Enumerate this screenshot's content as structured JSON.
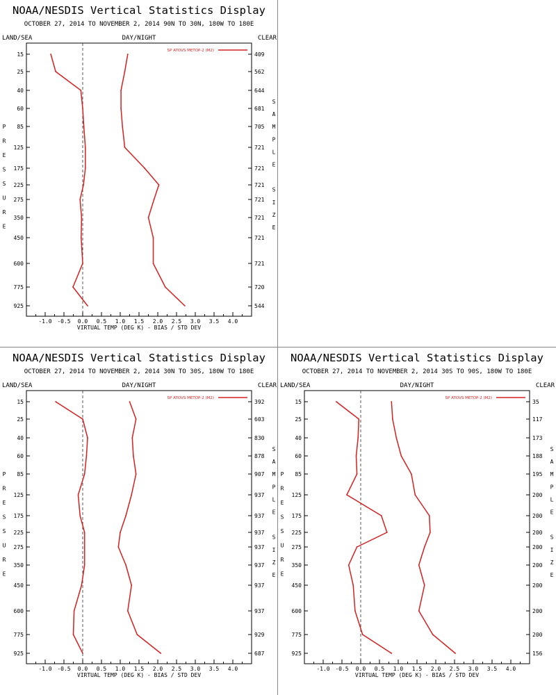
{
  "panels": [
    {
      "title": "NOAA/NESDIS Vertical Statistics Display",
      "subtitle": "OCTOBER 27, 2014 TO NOVEMBER 2, 2014  90N TO 30N, 180W TO 180E",
      "header_left": "LAND/SEA",
      "header_center": "DAY/NIGHT",
      "header_right": "CLEAR",
      "left_axis_label": "PRESSURE",
      "right_axis_label": "SAMPLE SIZE",
      "legend": "SP ATOVS METOP-2 (M2)",
      "xlabel": "VIRTUAL TEMP (DEG K) - BIAS / STD DEV",
      "chart_data": {
        "type": "line",
        "levels": [
          "15",
          "25",
          "40",
          "60",
          "85",
          "125",
          "175",
          "225",
          "275",
          "350",
          "450",
          "600",
          "775",
          "925"
        ],
        "x_ticks": [
          "-1.0",
          "-0.5",
          "0.0",
          "0.5",
          "1.0",
          "1.5",
          "2.0",
          "2.5",
          "3.0",
          "3.5",
          "4.0"
        ],
        "xlim": [
          -1.5,
          4.5
        ],
        "color": "#d42020",
        "sample_size": [
          "409",
          "562",
          "644",
          "681",
          "705",
          "721",
          "721",
          "721",
          "721",
          "721",
          "721",
          "721",
          "720",
          "544"
        ],
        "series": [
          {
            "values": [
              -0.85,
              -0.72,
              -0.05,
              0.0,
              0.03,
              0.07,
              0.07,
              0.02,
              -0.07,
              -0.03,
              -0.04,
              0.0,
              -0.26,
              0.13
            ]
          },
          {
            "values": [
              1.2,
              1.12,
              1.02,
              1.02,
              1.06,
              1.12,
              1.65,
              2.03,
              1.9,
              1.75,
              1.88,
              1.88,
              2.2,
              2.72
            ]
          }
        ]
      }
    },
    {
      "title": "NOAA/NESDIS Vertical Statistics Display",
      "subtitle": "OCTOBER 27, 2014 TO NOVEMBER 2, 2014  30N TO 30S, 180W TO 180E",
      "header_left": "LAND/SEA",
      "header_center": "DAY/NIGHT",
      "header_right": "CLEAR",
      "left_axis_label": "PRESSURE",
      "right_axis_label": "SAMPLE SIZE",
      "legend": "SP ATOVS METOP-2 (M2)",
      "xlabel": "VIRTUAL TEMP (DEG K) - BIAS / STD DEV",
      "chart_data": {
        "type": "line",
        "levels": [
          "15",
          "25",
          "40",
          "60",
          "85",
          "125",
          "175",
          "225",
          "275",
          "350",
          "450",
          "600",
          "775",
          "925"
        ],
        "x_ticks": [
          "-1.0",
          "-0.5",
          "0.0",
          "0.5",
          "1.0",
          "1.5",
          "2.0",
          "2.5",
          "3.0",
          "3.5",
          "4.0"
        ],
        "xlim": [
          -1.5,
          4.5
        ],
        "color": "#d42020",
        "sample_size": [
          "392",
          "603",
          "830",
          "878",
          "907",
          "937",
          "937",
          "937",
          "937",
          "937",
          "937",
          "937",
          "929",
          "687"
        ],
        "series": [
          {
            "values": [
              -0.72,
              0.0,
              0.13,
              0.1,
              0.05,
              -0.12,
              -0.07,
              0.05,
              0.05,
              0.05,
              -0.03,
              -0.23,
              -0.25,
              0.0
            ]
          },
          {
            "values": [
              1.25,
              1.42,
              1.32,
              1.35,
              1.42,
              1.3,
              1.15,
              1.0,
              0.95,
              1.15,
              1.3,
              1.2,
              1.45,
              2.08
            ]
          }
        ]
      }
    },
    {
      "title": "NOAA/NESDIS Vertical Statistics Display",
      "subtitle": "OCTOBER 27, 2014 TO NOVEMBER 2, 2014  30S TO 90S, 180W TO 180E",
      "header_left": "LAND/SEA",
      "header_center": "DAY/NIGHT",
      "header_right": "CLEAR",
      "left_axis_label": "PRESSURE",
      "right_axis_label": "SAMPLE SIZE",
      "legend": "SP ATOVS METOP-2 (M2)",
      "xlabel": "VIRTUAL TEMP (DEG K) - BIAS / STD DEV",
      "chart_data": {
        "type": "line",
        "levels": [
          "15",
          "25",
          "40",
          "60",
          "85",
          "125",
          "175",
          "225",
          "275",
          "350",
          "450",
          "600",
          "775",
          "925"
        ],
        "x_ticks": [
          "-1.0",
          "-0.5",
          "0.0",
          "0.5",
          "1.0",
          "1.5",
          "2.0",
          "2.5",
          "3.0",
          "3.5",
          "4.0"
        ],
        "xlim": [
          -1.5,
          4.5
        ],
        "color": "#d42020",
        "sample_size": [
          "35",
          "117",
          "173",
          "188",
          "195",
          "200",
          "200",
          "200",
          "200",
          "200",
          "200",
          "200",
          "200",
          "156"
        ],
        "series": [
          {
            "values": [
              -0.65,
              -0.05,
              -0.07,
              -0.12,
              -0.1,
              -0.37,
              0.55,
              0.7,
              -0.1,
              -0.32,
              -0.2,
              -0.15,
              0.05,
              0.82
            ]
          },
          {
            "values": [
              0.82,
              0.85,
              0.95,
              1.08,
              1.35,
              1.45,
              1.83,
              1.85,
              1.7,
              1.55,
              1.7,
              1.55,
              1.92,
              2.52
            ]
          }
        ]
      }
    }
  ]
}
